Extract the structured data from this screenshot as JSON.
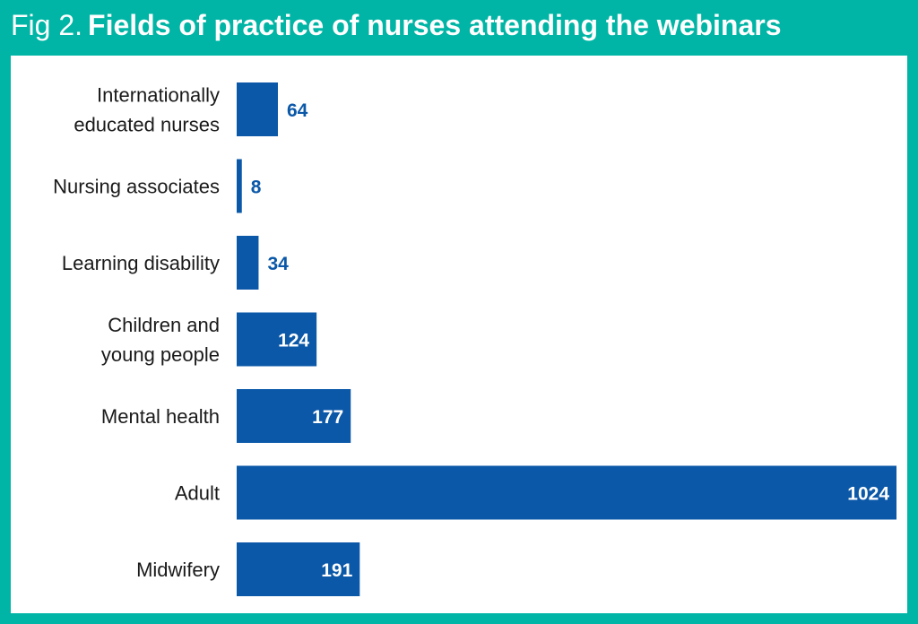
{
  "title_prefix": "Fig 2.",
  "title": "Fields of practice of nurses attending the webinars",
  "colors": {
    "frame": "#00b5a5",
    "bar": "#0b58a8",
    "label_outside": "#0b58a8",
    "label_inside": "#ffffff"
  },
  "chart_data": {
    "type": "bar",
    "orientation": "horizontal",
    "categories": [
      "Internationally educated nurses",
      "Nursing associates",
      "Learning disability",
      "Children and young people",
      "Mental health",
      "Adult",
      "Midwifery"
    ],
    "category_lines": [
      [
        "Internationally",
        "educated nurses"
      ],
      [
        "Nursing associates"
      ],
      [
        "Learning disability"
      ],
      [
        "Children and",
        "young people"
      ],
      [
        "Mental health"
      ],
      [
        "Adult"
      ],
      [
        "Midwifery"
      ]
    ],
    "values": [
      64,
      8,
      34,
      124,
      177,
      1024,
      191
    ],
    "value_labels": [
      "64",
      "8",
      "34",
      "124",
      "177",
      "1024",
      "191"
    ],
    "xlim": [
      0,
      1024
    ],
    "grid": false,
    "legend": "none"
  }
}
